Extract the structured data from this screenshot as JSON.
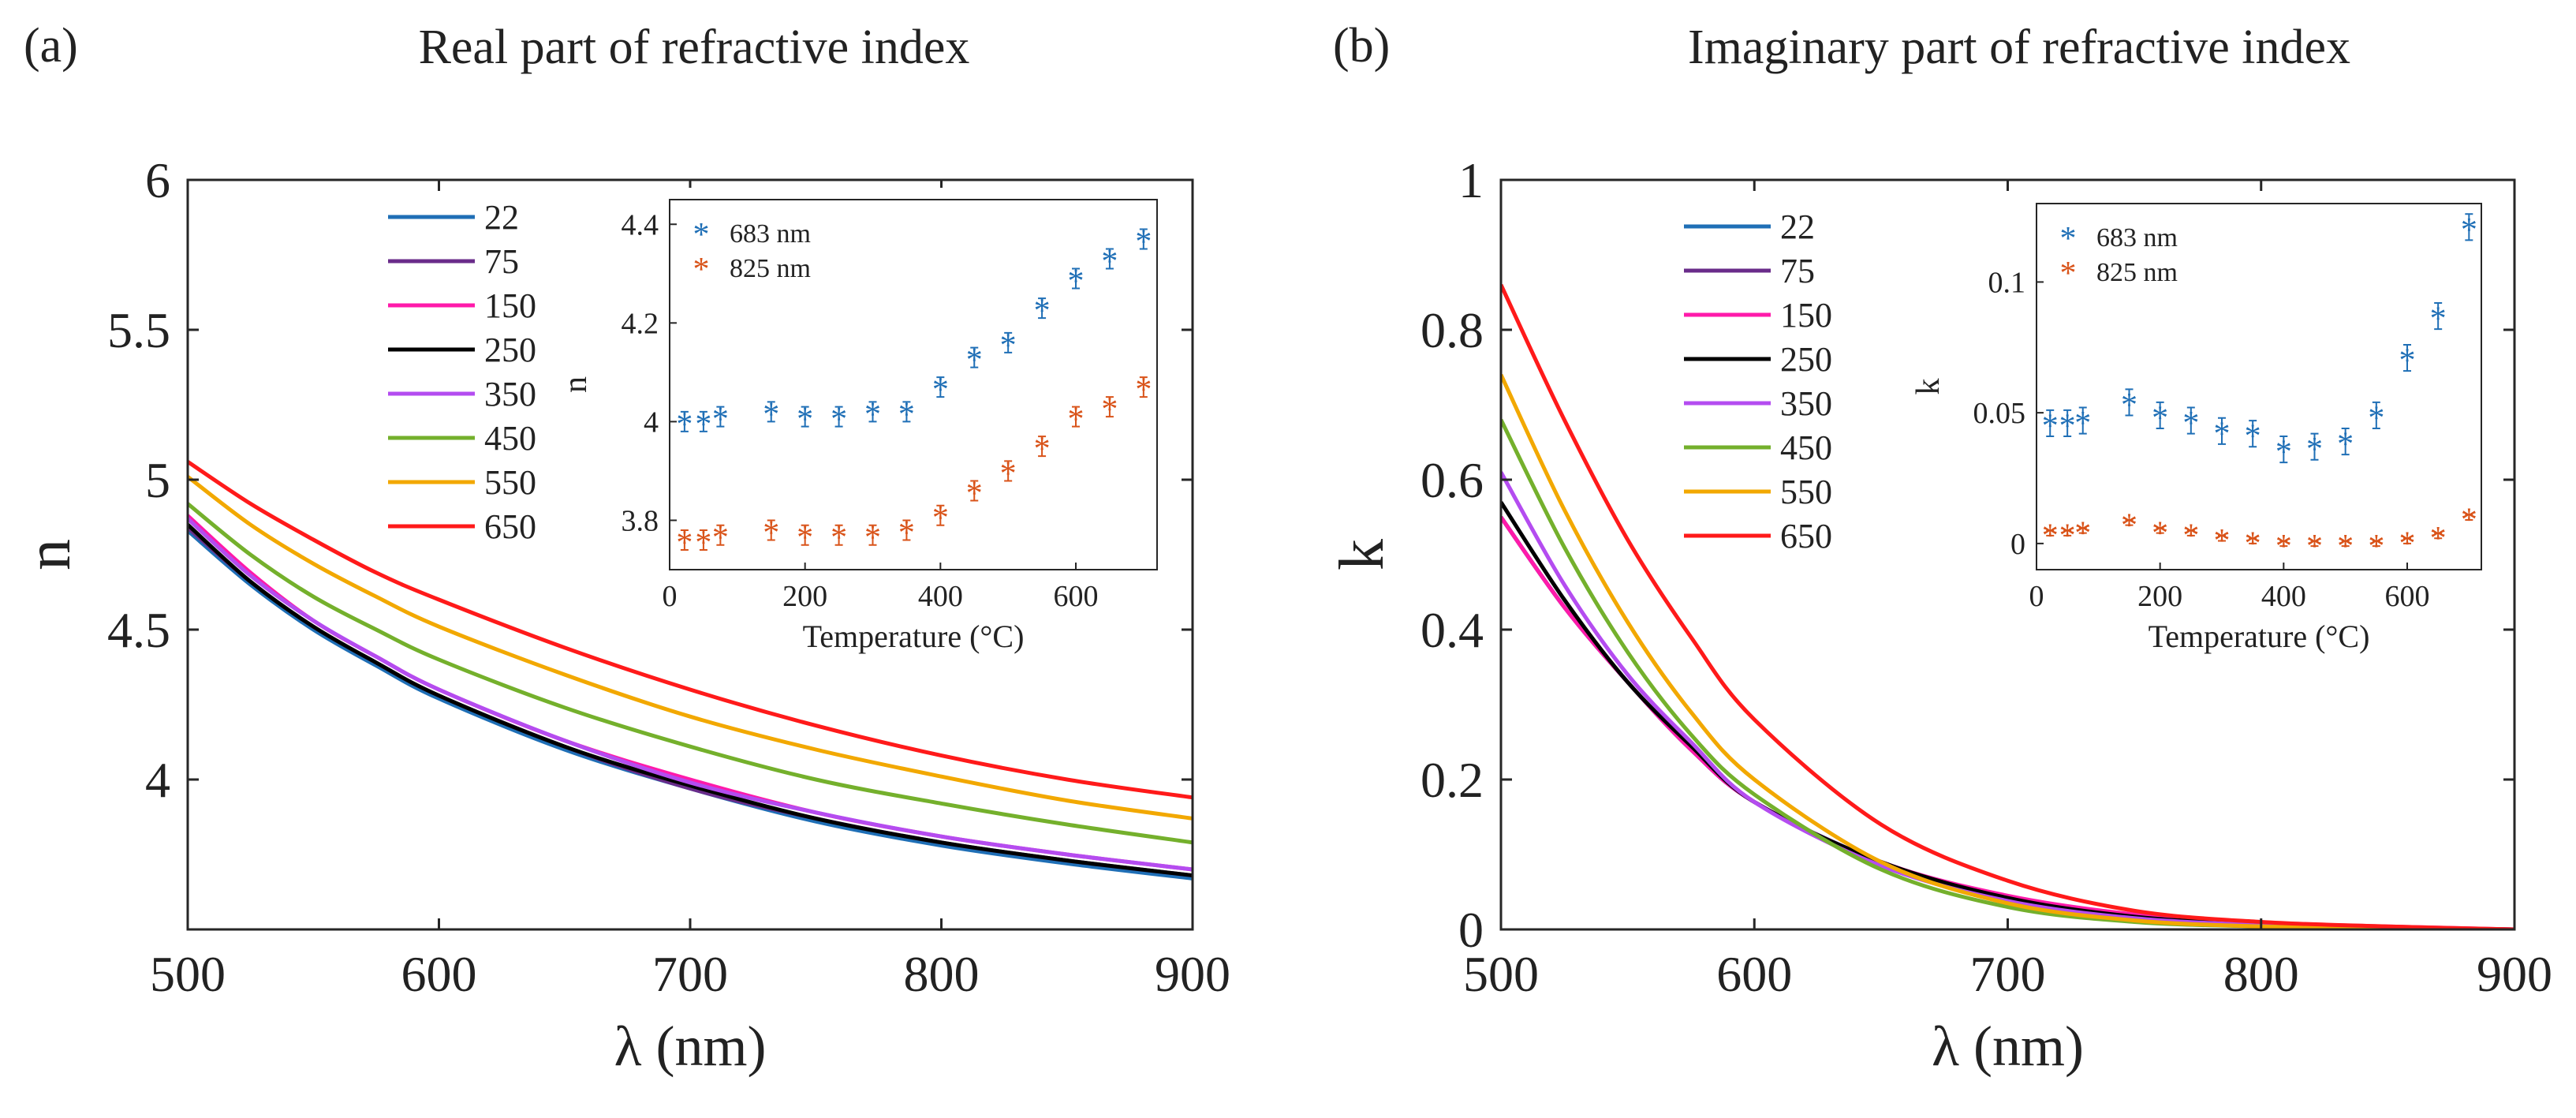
{
  "figure": {
    "panel_a_tag": "(a)",
    "panel_b_tag": "(b)"
  },
  "chart_data": [
    {
      "panel": "(a)",
      "type": "line",
      "title": "Real part of refractive index",
      "xlabel": "λ (nm)",
      "ylabel": "n",
      "xlim": [
        500,
        900
      ],
      "ylim": [
        3.5,
        6
      ],
      "xticks": [
        500,
        600,
        700,
        800,
        900
      ],
      "yticks": [
        4,
        4.5,
        5,
        5.5,
        6
      ],
      "legend_location": "top-left",
      "legend_title": "",
      "x": [
        500,
        525,
        550,
        575,
        600,
        650,
        700,
        750,
        800,
        850,
        900
      ],
      "series": [
        {
          "name": "22",
          "color": "#1f6fb6",
          "values": [
            4.83,
            4.65,
            4.5,
            4.38,
            4.27,
            4.1,
            3.97,
            3.86,
            3.78,
            3.72,
            3.67
          ]
        },
        {
          "name": "75",
          "color": "#6a2c8a",
          "values": [
            4.84,
            4.66,
            4.51,
            4.39,
            4.28,
            4.11,
            3.97,
            3.87,
            3.79,
            3.73,
            3.68
          ]
        },
        {
          "name": "150",
          "color": "#ff1aaa",
          "values": [
            4.88,
            4.69,
            4.53,
            4.41,
            4.3,
            4.13,
            4.0,
            3.89,
            3.81,
            3.75,
            3.7
          ]
        },
        {
          "name": "250",
          "color": "#000000",
          "values": [
            4.85,
            4.66,
            4.51,
            4.39,
            4.28,
            4.11,
            3.98,
            3.87,
            3.79,
            3.73,
            3.68
          ]
        },
        {
          "name": "350",
          "color": "#b44cf0",
          "values": [
            4.87,
            4.68,
            4.53,
            4.41,
            4.3,
            4.13,
            3.99,
            3.89,
            3.81,
            3.75,
            3.7
          ]
        },
        {
          "name": "450",
          "color": "#74b02c",
          "values": [
            4.92,
            4.75,
            4.61,
            4.5,
            4.4,
            4.24,
            4.11,
            4.0,
            3.92,
            3.85,
            3.79
          ]
        },
        {
          "name": "550",
          "color": "#f2a800",
          "values": [
            5.01,
            4.85,
            4.72,
            4.61,
            4.51,
            4.35,
            4.21,
            4.1,
            4.01,
            3.93,
            3.87
          ]
        },
        {
          "name": "650",
          "color": "#ff1a1a",
          "values": [
            5.06,
            4.92,
            4.8,
            4.69,
            4.6,
            4.44,
            4.3,
            4.18,
            4.08,
            4.0,
            3.94
          ]
        }
      ],
      "inset": {
        "type": "scatter",
        "xlabel": "Temperature (°C)",
        "ylabel": "n",
        "xlim": [
          0,
          720
        ],
        "ylim": [
          3.7,
          4.45
        ],
        "xticks": [
          0,
          200,
          400,
          600
        ],
        "yticks": [
          3.8,
          4,
          4.2,
          4.4
        ],
        "temperatures": [
          22,
          50,
          75,
          150,
          200,
          250,
          300,
          350,
          400,
          450,
          500,
          550,
          600,
          650,
          700
        ],
        "series": [
          {
            "name": "683 nm",
            "color": "#1f6fb6",
            "marker": "*",
            "values": [
              4.0,
              4.0,
              4.01,
              4.02,
              4.01,
              4.01,
              4.02,
              4.02,
              4.07,
              4.13,
              4.16,
              4.23,
              4.29,
              4.33,
              4.37
            ],
            "errors": [
              0.02,
              0.02,
              0.02,
              0.02,
              0.02,
              0.02,
              0.02,
              0.02,
              0.02,
              0.02,
              0.02,
              0.02,
              0.02,
              0.02,
              0.02
            ]
          },
          {
            "name": "825 nm",
            "color": "#d95319",
            "marker": "*",
            "values": [
              3.76,
              3.76,
              3.77,
              3.78,
              3.77,
              3.77,
              3.77,
              3.78,
              3.81,
              3.86,
              3.9,
              3.95,
              4.01,
              4.03,
              4.07
            ],
            "errors": [
              0.02,
              0.02,
              0.02,
              0.02,
              0.02,
              0.02,
              0.02,
              0.02,
              0.02,
              0.02,
              0.02,
              0.02,
              0.02,
              0.02,
              0.02
            ]
          }
        ]
      }
    },
    {
      "panel": "(b)",
      "type": "line",
      "title": "Imaginary part of refractive index",
      "xlabel": "λ (nm)",
      "ylabel": "k",
      "xlim": [
        500,
        900
      ],
      "ylim": [
        0,
        1
      ],
      "xticks": [
        500,
        600,
        700,
        800,
        900
      ],
      "yticks": [
        0,
        0.2,
        0.4,
        0.6,
        0.8,
        1
      ],
      "legend_location": "top-left",
      "x": [
        500,
        525,
        550,
        575,
        600,
        650,
        700,
        750,
        800,
        850,
        900
      ],
      "series": [
        {
          "name": "22",
          "color": "#1f6fb6",
          "values": [
            0.55,
            0.43,
            0.33,
            0.24,
            0.17,
            0.09,
            0.04,
            0.015,
            0.006,
            0.002,
            0.0
          ]
        },
        {
          "name": "75",
          "color": "#6a2c8a",
          "values": [
            0.55,
            0.43,
            0.33,
            0.24,
            0.17,
            0.09,
            0.04,
            0.016,
            0.006,
            0.002,
            0.0
          ]
        },
        {
          "name": "150",
          "color": "#ff1aaa",
          "values": [
            0.55,
            0.43,
            0.33,
            0.24,
            0.17,
            0.09,
            0.045,
            0.02,
            0.009,
            0.004,
            0.0
          ]
        },
        {
          "name": "250",
          "color": "#000000",
          "values": [
            0.57,
            0.44,
            0.33,
            0.245,
            0.17,
            0.09,
            0.042,
            0.017,
            0.007,
            0.002,
            0.0
          ]
        },
        {
          "name": "350",
          "color": "#b44cf0",
          "values": [
            0.61,
            0.46,
            0.34,
            0.25,
            0.17,
            0.085,
            0.038,
            0.015,
            0.006,
            0.002,
            0.0
          ]
        },
        {
          "name": "450",
          "color": "#74b02c",
          "values": [
            0.68,
            0.51,
            0.37,
            0.26,
            0.18,
            0.08,
            0.03,
            0.01,
            0.004,
            0.001,
            0.0
          ]
        },
        {
          "name": "550",
          "color": "#f2a800",
          "values": [
            0.74,
            0.56,
            0.41,
            0.29,
            0.2,
            0.09,
            0.035,
            0.012,
            0.004,
            0.001,
            0.0
          ]
        },
        {
          "name": "650",
          "color": "#ff1a1a",
          "values": [
            0.86,
            0.68,
            0.52,
            0.39,
            0.28,
            0.14,
            0.065,
            0.025,
            0.01,
            0.004,
            0.0
          ]
        }
      ],
      "inset": {
        "type": "scatter",
        "xlabel": "Temperature (°C)",
        "ylabel": "k",
        "xlim": [
          0,
          720
        ],
        "ylim": [
          -0.01,
          0.13
        ],
        "xticks": [
          0,
          200,
          400,
          600
        ],
        "yticks": [
          0,
          0.05,
          0.1
        ],
        "temperatures": [
          22,
          50,
          75,
          150,
          200,
          250,
          300,
          350,
          400,
          450,
          500,
          550,
          600,
          650,
          700
        ],
        "series": [
          {
            "name": "683 nm",
            "color": "#1f6fb6",
            "marker": "*",
            "values": [
              0.046,
              0.046,
              0.047,
              0.054,
              0.049,
              0.047,
              0.043,
              0.042,
              0.036,
              0.037,
              0.039,
              0.049,
              0.071,
              0.087,
              0.121
            ],
            "errors": [
              0.005,
              0.005,
              0.005,
              0.005,
              0.005,
              0.005,
              0.005,
              0.005,
              0.005,
              0.005,
              0.005,
              0.005,
              0.005,
              0.005,
              0.005
            ]
          },
          {
            "name": "825 nm",
            "color": "#d95319",
            "marker": "*",
            "values": [
              0.004,
              0.004,
              0.005,
              0.008,
              0.005,
              0.004,
              0.002,
              0.001,
              0.0,
              0.0,
              0.0,
              0.0,
              0.001,
              0.003,
              0.01
            ],
            "errors": [
              0.001,
              0.001,
              0.001,
              0.001,
              0.001,
              0.001,
              0.001,
              0.001,
              0.001,
              0.001,
              0.001,
              0.001,
              0.001,
              0.001,
              0.001
            ]
          }
        ]
      }
    }
  ]
}
